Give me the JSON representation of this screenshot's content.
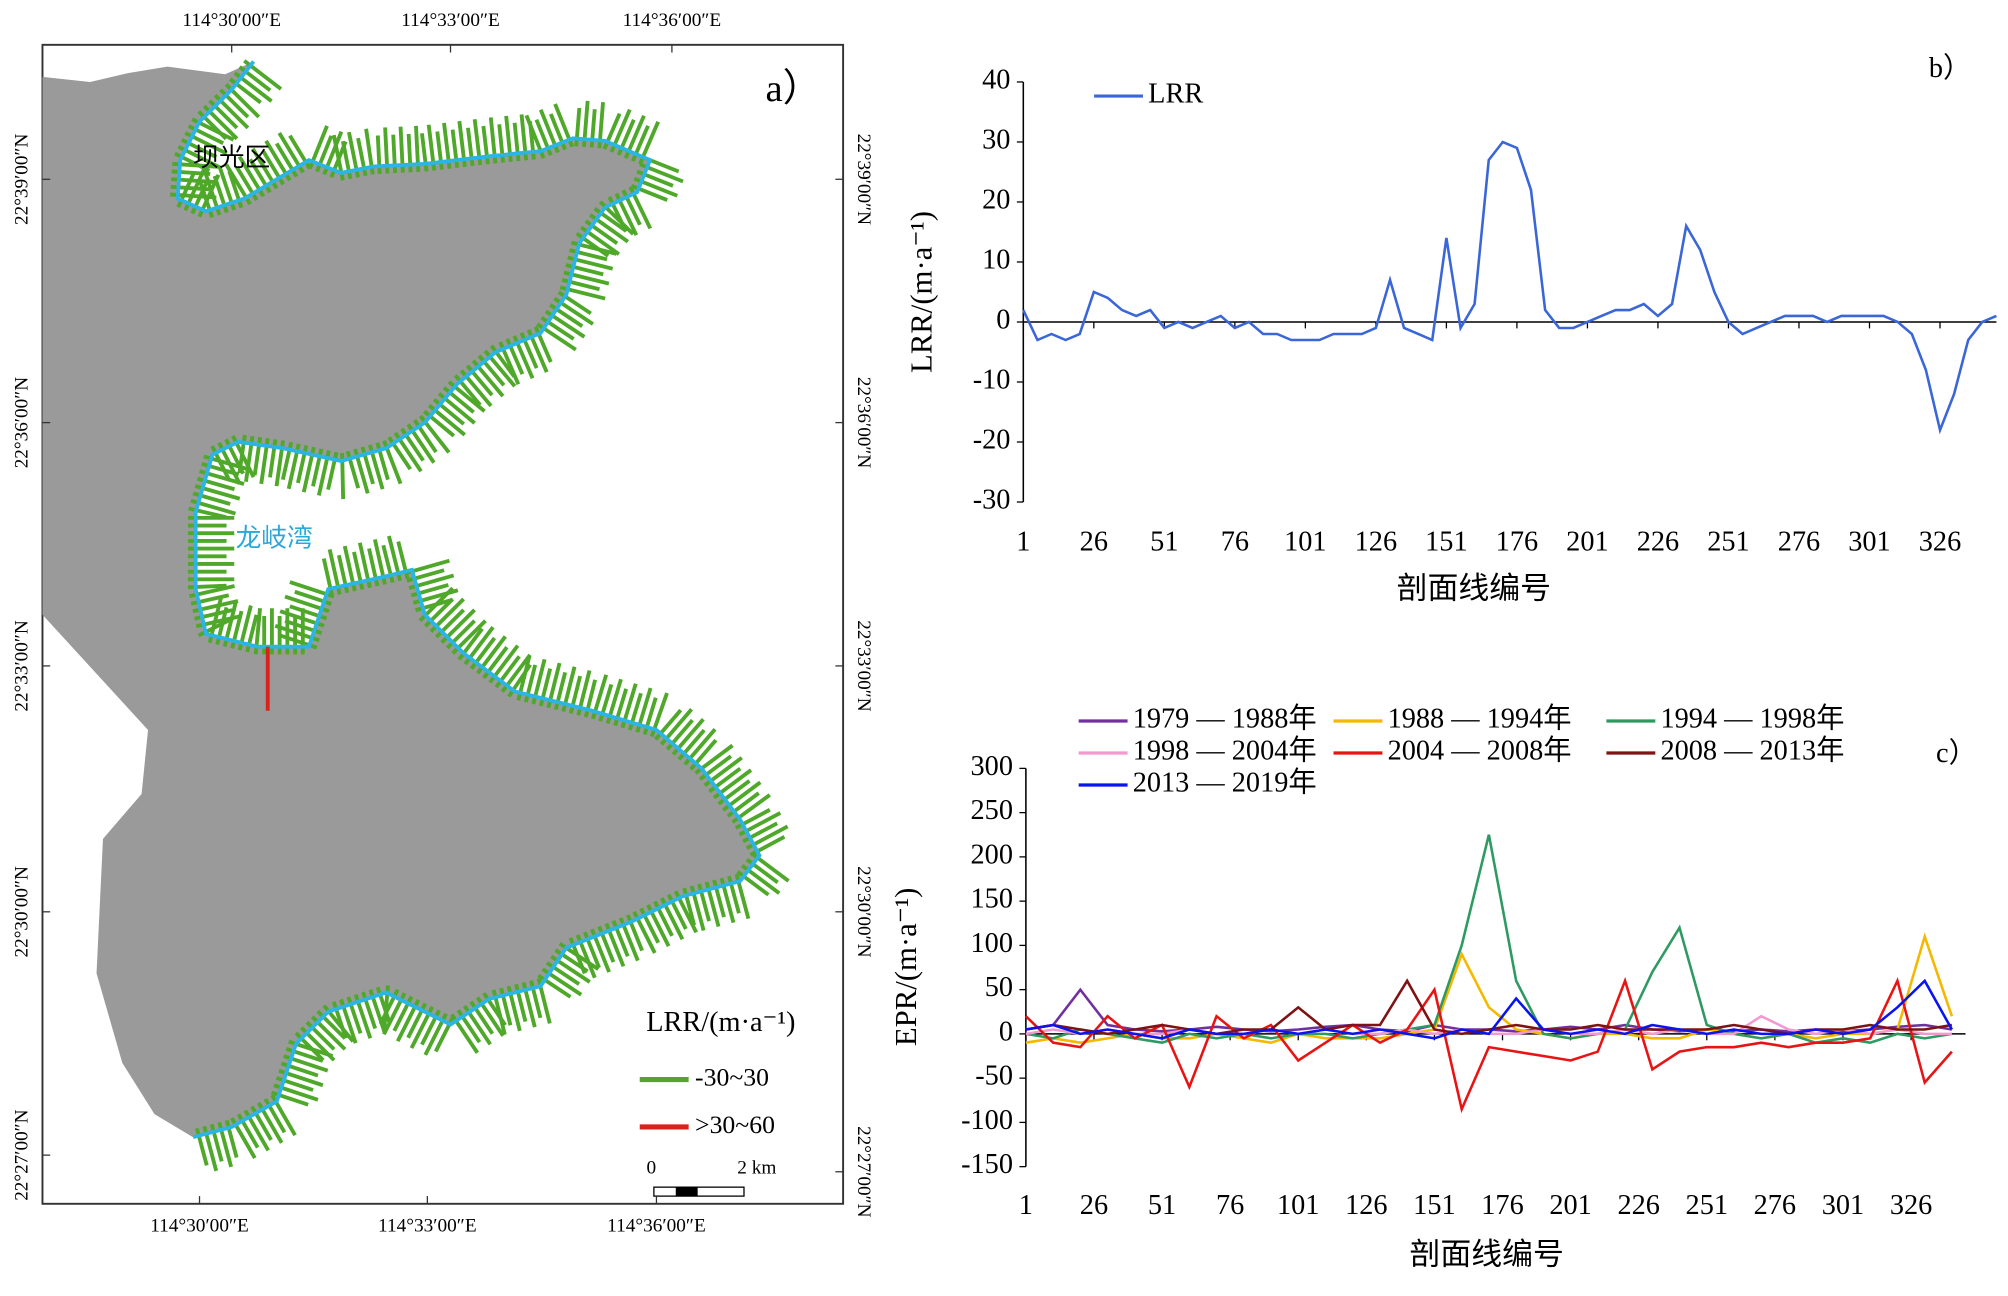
{
  "map": {
    "panel_label": "a）",
    "lon_top": [
      "114°30′00″E",
      "114°33′00″E",
      "114°36′00″E"
    ],
    "lon_bottom": [
      "114°30′00″E",
      "114°33′00″E",
      "114°36′00″E"
    ],
    "lat_left": [
      "22°39′00″N",
      "22°36′00″N",
      "22°33′00″N",
      "22°30′00″N",
      "22°27′00″N"
    ],
    "lat_right": [
      "22°39′00″N",
      "22°36′00″N",
      "22°33′00″N",
      "22°30′00″N",
      "22°27′00″N"
    ],
    "place_labels": [
      "坝光区",
      "龙岐湾"
    ],
    "legend_title": "LRR/(m·a⁻¹)",
    "legend_items": [
      {
        "label": "-30~30",
        "color": "#4fa82a"
      },
      {
        "label": ">30~60",
        "color": "#d9221c"
      }
    ],
    "scale_labels": [
      "0",
      "2 km"
    ]
  },
  "chart_data": [
    {
      "type": "line",
      "panel_label": "b）",
      "xlabel": "剖面线编号",
      "ylabel": "LRR/(m·a⁻¹)",
      "xlim": [
        1,
        346
      ],
      "xticks": [
        1,
        26,
        51,
        76,
        101,
        126,
        151,
        176,
        201,
        226,
        251,
        276,
        301,
        326
      ],
      "ylim": [
        -30,
        40
      ],
      "yticks": [
        -30,
        -20,
        -10,
        0,
        10,
        20,
        30,
        40
      ],
      "x": [
        1,
        6,
        11,
        16,
        21,
        26,
        31,
        36,
        41,
        46,
        51,
        56,
        61,
        66,
        71,
        76,
        81,
        86,
        91,
        96,
        101,
        106,
        111,
        116,
        121,
        126,
        131,
        136,
        141,
        146,
        151,
        156,
        161,
        166,
        171,
        176,
        181,
        186,
        191,
        196,
        201,
        206,
        211,
        216,
        221,
        226,
        231,
        236,
        241,
        246,
        251,
        256,
        261,
        266,
        271,
        276,
        281,
        286,
        291,
        296,
        301,
        306,
        311,
        316,
        321,
        326,
        331,
        336,
        341,
        346
      ],
      "series": [
        {
          "name": "LRR",
          "color": "#3a66d8",
          "values": [
            2,
            -3,
            -2,
            -3,
            -2,
            5,
            4,
            2,
            1,
            2,
            -1,
            0,
            -1,
            0,
            1,
            -1,
            0,
            -2,
            -2,
            -3,
            -3,
            -3,
            -2,
            -2,
            -2,
            -1,
            7,
            -1,
            -2,
            -3,
            14,
            -1,
            3,
            27,
            30,
            29,
            22,
            2,
            -1,
            -1,
            0,
            1,
            2,
            2,
            3,
            1,
            3,
            16,
            12,
            5,
            0,
            -2,
            -1,
            0,
            1,
            1,
            1,
            0,
            1,
            1,
            1,
            1,
            0,
            -2,
            -8,
            -18,
            -12,
            -3,
            0,
            1
          ]
        }
      ]
    },
    {
      "type": "line",
      "panel_label": "c）",
      "xlabel": "剖面线编号",
      "ylabel": "EPR/(m·a⁻¹)",
      "xlim": [
        1,
        346
      ],
      "xticks": [
        1,
        26,
        51,
        76,
        101,
        126,
        151,
        176,
        201,
        226,
        251,
        276,
        301,
        326
      ],
      "ylim": [
        -150,
        300
      ],
      "yticks": [
        -150,
        -100,
        -50,
        0,
        50,
        100,
        150,
        200,
        250,
        300
      ],
      "x": [
        1,
        11,
        21,
        31,
        41,
        51,
        61,
        71,
        81,
        91,
        101,
        111,
        121,
        131,
        141,
        151,
        161,
        171,
        181,
        191,
        201,
        211,
        221,
        231,
        241,
        251,
        261,
        271,
        281,
        291,
        301,
        311,
        321,
        331,
        341
      ],
      "series": [
        {
          "name": "1979 — 1988年",
          "color": "#7030a0",
          "values": [
            5,
            10,
            50,
            10,
            5,
            3,
            5,
            8,
            5,
            3,
            5,
            8,
            10,
            5,
            3,
            10,
            5,
            5,
            3,
            5,
            8,
            5,
            10,
            5,
            3,
            5,
            3,
            5,
            3,
            5,
            3,
            5,
            8,
            10,
            5
          ]
        },
        {
          "name": "1988 — 1994年",
          "color": "#f5b800",
          "values": [
            -10,
            -5,
            -10,
            -5,
            0,
            -5,
            -5,
            0,
            -5,
            -10,
            0,
            -5,
            -5,
            -5,
            0,
            5,
            90,
            30,
            5,
            0,
            -5,
            0,
            0,
            -5,
            -5,
            5,
            0,
            -5,
            0,
            -5,
            0,
            0,
            5,
            110,
            20
          ]
        },
        {
          "name": "1994 — 1998年",
          "color": "#2e9a62",
          "values": [
            0,
            -5,
            5,
            0,
            -5,
            -10,
            0,
            -5,
            0,
            -5,
            0,
            0,
            -5,
            0,
            5,
            10,
            100,
            225,
            60,
            0,
            -5,
            0,
            5,
            70,
            120,
            10,
            0,
            -5,
            0,
            -10,
            -5,
            -10,
            0,
            -5,
            0
          ]
        },
        {
          "name": "1998 — 2004年",
          "color": "#f29ad0",
          "values": [
            0,
            5,
            0,
            5,
            0,
            0,
            5,
            0,
            0,
            5,
            0,
            5,
            0,
            0,
            5,
            0,
            5,
            0,
            0,
            5,
            0,
            0,
            5,
            0,
            5,
            0,
            0,
            20,
            5,
            0,
            5,
            0,
            5,
            0,
            0
          ]
        },
        {
          "name": "2004 — 2008年",
          "color": "#e81414",
          "values": [
            20,
            -10,
            -15,
            20,
            -5,
            10,
            -60,
            20,
            -5,
            10,
            -30,
            -10,
            10,
            -10,
            5,
            50,
            -85,
            -15,
            -20,
            -25,
            -30,
            -20,
            60,
            -40,
            -20,
            -15,
            -15,
            -10,
            -15,
            -10,
            -10,
            -5,
            60,
            -55,
            -20
          ]
        },
        {
          "name": "2008 — 2013年",
          "color": "#7f1212",
          "values": [
            5,
            10,
            5,
            0,
            5,
            10,
            5,
            0,
            5,
            5,
            30,
            5,
            10,
            10,
            60,
            5,
            0,
            5,
            10,
            5,
            5,
            10,
            5,
            5,
            5,
            5,
            10,
            5,
            0,
            5,
            5,
            10,
            5,
            5,
            10
          ]
        },
        {
          "name": "2013 — 2019年",
          "color": "#0a14f0",
          "values": [
            5,
            10,
            0,
            5,
            0,
            -5,
            5,
            0,
            0,
            5,
            0,
            5,
            0,
            5,
            0,
            -5,
            5,
            0,
            40,
            5,
            0,
            5,
            0,
            10,
            5,
            0,
            5,
            0,
            0,
            5,
            0,
            5,
            30,
            60,
            5
          ]
        }
      ]
    }
  ]
}
